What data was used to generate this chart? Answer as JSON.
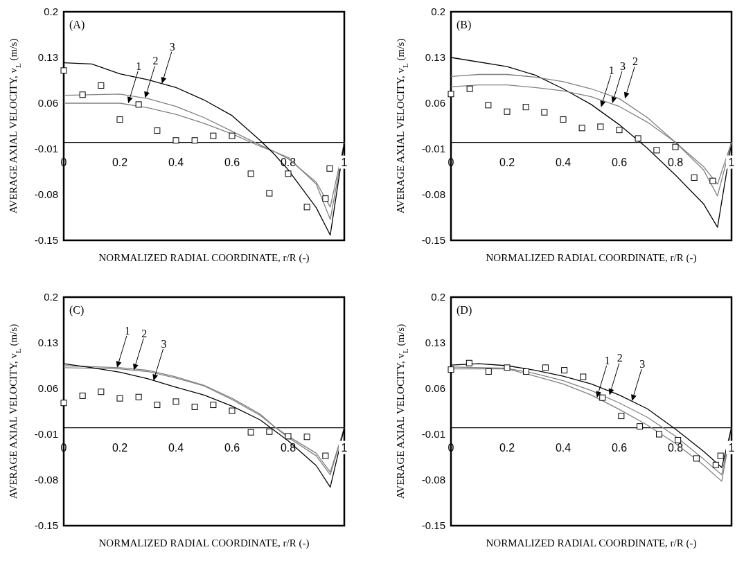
{
  "chart_data": [
    {
      "type": "line",
      "xlabel": "NORMALIZED RADIAL COORDINATE, r/R (-)",
      "ylabel": "AVERAGE AXIAL VELOCITY, v$_{L}$ (m/s)",
      "xlim": [
        0,
        1
      ],
      "xticks": [
        0,
        0.2,
        0.4,
        0.6,
        0.8,
        1
      ],
      "ylim": [
        -0.15,
        0.2
      ],
      "yticks": [
        -0.15,
        -0.08,
        -0.01,
        0.06,
        0.13,
        0.2
      ],
      "annotations": [
        "(A)",
        {
          "text": "1",
          "x": 0.23,
          "y": 0.06
        },
        {
          "text": "2",
          "x": 0.29,
          "y": 0.068
        },
        {
          "text": "3",
          "x": 0.35,
          "y": 0.09
        }
      ],
      "series": [
        {
          "type": "scatter",
          "marker": "square",
          "color": "#000000",
          "x": [
            0,
            0.067,
            0.133,
            0.2,
            0.267,
            0.333,
            0.4,
            0.467,
            0.533,
            0.6,
            0.667,
            0.733,
            0.8,
            0.867,
            0.933,
            0.948
          ],
          "values": [
            0.11,
            0.073,
            0.087,
            0.035,
            0.058,
            0.018,
            0.003,
            0.003,
            0.01,
            0.01,
            -0.048,
            -0.078,
            -0.048,
            -0.099,
            -0.086,
            -0.04
          ]
        },
        {
          "type": "line",
          "marker": "none",
          "line_style": "solid",
          "color": "#808080",
          "x": [
            0,
            0.2,
            0.3,
            0.4,
            0.5,
            0.6,
            0.7,
            0.75,
            0.8,
            0.9,
            0.95,
            1
          ],
          "values": [
            0.06,
            0.06,
            0.053,
            0.043,
            0.029,
            0.013,
            -0.006,
            -0.014,
            -0.023,
            -0.064,
            -0.118,
            0
          ]
        },
        {
          "type": "line",
          "marker": "none",
          "line_style": "solid",
          "color": "#808080",
          "x": [
            0,
            0.2,
            0.3,
            0.4,
            0.5,
            0.6,
            0.7,
            0.75,
            0.8,
            0.9,
            0.95,
            1
          ],
          "values": [
            0.072,
            0.074,
            0.067,
            0.055,
            0.038,
            0.017,
            -0.004,
            -0.014,
            -0.025,
            -0.061,
            -0.099,
            0
          ]
        },
        {
          "type": "line",
          "marker": "none",
          "line_style": "solid",
          "color": "#000000",
          "x": [
            0,
            0.1,
            0.2,
            0.3,
            0.4,
            0.5,
            0.6,
            0.7,
            0.75,
            0.8,
            0.9,
            0.95,
            1
          ],
          "values": [
            0.122,
            0.12,
            0.105,
            0.096,
            0.084,
            0.065,
            0.041,
            0.003,
            -0.018,
            -0.042,
            -0.1,
            -0.142,
            0
          ]
        }
      ]
    },
    {
      "type": "line",
      "xlabel": "NORMALIZED RADIAL COORDINATE, r/R (-)",
      "ylabel": "AVERAGE AXIAL VELOCITY, v$_{L}$ (m/s)",
      "xlim": [
        0,
        1
      ],
      "xticks": [
        0,
        0.2,
        0.4,
        0.6,
        0.8,
        1
      ],
      "ylim": [
        -0.15,
        0.2
      ],
      "yticks": [
        -0.15,
        -0.08,
        -0.01,
        0.06,
        0.13,
        0.2
      ],
      "annotations": [
        "(B)",
        {
          "text": "1",
          "x": 0.535,
          "y": 0.054
        },
        {
          "text": "3",
          "x": 0.575,
          "y": 0.06
        },
        {
          "text": "2",
          "x": 0.62,
          "y": 0.067
        }
      ],
      "series": [
        {
          "type": "scatter",
          "marker": "square",
          "color": "#000000",
          "x": [
            0,
            0.067,
            0.133,
            0.2,
            0.267,
            0.333,
            0.4,
            0.467,
            0.533,
            0.6,
            0.667,
            0.733,
            0.8,
            0.867,
            0.933
          ],
          "values": [
            0.074,
            0.082,
            0.057,
            0.047,
            0.054,
            0.046,
            0.035,
            0.022,
            0.024,
            0.019,
            0.006,
            -0.012,
            -0.007,
            -0.054,
            -0.059
          ]
        },
        {
          "type": "line",
          "marker": "none",
          "line_style": "solid",
          "color": "#000000",
          "x": [
            0,
            0.2,
            0.3,
            0.4,
            0.5,
            0.6,
            0.7,
            0.8,
            0.9,
            0.95,
            1
          ],
          "values": [
            0.13,
            0.116,
            0.103,
            0.082,
            0.058,
            0.027,
            -0.009,
            -0.05,
            -0.094,
            -0.13,
            0
          ]
        },
        {
          "type": "line",
          "marker": "none",
          "line_style": "solid",
          "color": "#808080",
          "x": [
            0,
            0.1,
            0.2,
            0.3,
            0.4,
            0.5,
            0.6,
            0.7,
            0.8,
            0.9,
            0.95,
            1
          ],
          "values": [
            0.101,
            0.104,
            0.104,
            0.1,
            0.093,
            0.082,
            0.067,
            0.038,
            0.0,
            -0.037,
            -0.064,
            0
          ]
        },
        {
          "type": "line",
          "marker": "none",
          "line_style": "solid",
          "color": "#808080",
          "x": [
            0,
            0.1,
            0.2,
            0.3,
            0.4,
            0.5,
            0.6,
            0.7,
            0.8,
            0.9,
            0.95,
            1
          ],
          "values": [
            0.085,
            0.088,
            0.088,
            0.084,
            0.079,
            0.07,
            0.055,
            0.031,
            0,
            -0.042,
            -0.082,
            0
          ]
        }
      ]
    },
    {
      "type": "line",
      "xlabel": "NORMALIZED RADIAL COORDINATE, r/R (-)",
      "ylabel": "AVERAGE AXIAL VELOCITY, v$_{L}$ (m/s)",
      "xlim": [
        0,
        1
      ],
      "xticks": [
        0,
        0.2,
        0.4,
        0.6,
        0.8,
        1
      ],
      "ylim": [
        -0.15,
        0.2
      ],
      "yticks": [
        -0.15,
        -0.08,
        -0.01,
        0.06,
        0.13,
        0.2
      ],
      "annotations": [
        "(C)",
        {
          "text": "1",
          "x": 0.19,
          "y": 0.092
        },
        {
          "text": "2",
          "x": 0.25,
          "y": 0.088
        },
        {
          "text": "3",
          "x": 0.32,
          "y": 0.072
        }
      ],
      "series": [
        {
          "type": "scatter",
          "marker": "square",
          "color": "#000000",
          "x": [
            0,
            0.067,
            0.133,
            0.2,
            0.267,
            0.333,
            0.4,
            0.467,
            0.533,
            0.6,
            0.667,
            0.733,
            0.8,
            0.867,
            0.933
          ],
          "values": [
            0.038,
            0.049,
            0.055,
            0.045,
            0.047,
            0.035,
            0.04,
            0.032,
            0.035,
            0.026,
            -0.007,
            -0.006,
            -0.013,
            -0.014,
            -0.043
          ]
        },
        {
          "type": "line",
          "marker": "none",
          "line_style": "solid",
          "color": "#808080",
          "x": [
            0,
            0.2,
            0.3,
            0.4,
            0.5,
            0.6,
            0.7,
            0.75,
            0.8,
            0.9,
            0.95,
            1
          ],
          "values": [
            0.095,
            0.092,
            0.088,
            0.078,
            0.065,
            0.045,
            0.021,
            0.002,
            -0.013,
            -0.039,
            -0.068,
            0
          ]
        },
        {
          "type": "line",
          "marker": "none",
          "line_style": "solid",
          "color": "#808080",
          "x": [
            0,
            0.2,
            0.3,
            0.4,
            0.5,
            0.6,
            0.7,
            0.8,
            0.9,
            0.95,
            1
          ],
          "values": [
            0.092,
            0.09,
            0.086,
            0.076,
            0.064,
            0.043,
            0.019,
            -0.015,
            -0.043,
            -0.072,
            0
          ]
        },
        {
          "type": "line",
          "marker": "none",
          "line_style": "solid",
          "color": "#000000",
          "x": [
            0,
            0.1,
            0.2,
            0.3,
            0.4,
            0.5,
            0.6,
            0.7,
            0.8,
            0.9,
            0.95,
            1
          ],
          "values": [
            0.098,
            0.092,
            0.085,
            0.075,
            0.062,
            0.05,
            0.033,
            0.012,
            -0.02,
            -0.058,
            -0.091,
            0
          ]
        }
      ]
    },
    {
      "type": "line",
      "xlabel": "NORMALIZED RADIAL COORDINATE, r/R (-)",
      "ylabel": "AVERAGE AXIAL VELOCITY, v$_{L}$ (m/s)",
      "xlim": [
        0,
        1
      ],
      "xticks": [
        0,
        0.2,
        0.4,
        0.6,
        0.8,
        1
      ],
      "ylim": [
        -0.15,
        0.2
      ],
      "yticks": [
        -0.15,
        -0.08,
        -0.01,
        0.06,
        0.13,
        0.2
      ],
      "annotations": [
        "(D)",
        {
          "text": "1",
          "x": 0.52,
          "y": 0.046
        },
        {
          "text": "2",
          "x": 0.565,
          "y": 0.05
        },
        {
          "text": "3",
          "x": 0.645,
          "y": 0.041
        }
      ],
      "series": [
        {
          "type": "scatter",
          "marker": "square",
          "color": "#000000",
          "x": [
            0,
            0.065,
            0.134,
            0.2,
            0.268,
            0.337,
            0.404,
            0.471,
            0.54,
            0.607,
            0.673,
            0.742,
            0.809,
            0.875,
            0.944,
            0.961
          ],
          "values": [
            0.089,
            0.099,
            0.086,
            0.092,
            0.086,
            0.092,
            0.088,
            0.078,
            0.046,
            0.018,
            0.002,
            -0.01,
            -0.019,
            -0.047,
            -0.057,
            -0.043
          ]
        },
        {
          "type": "line",
          "marker": "none",
          "line_style": "solid",
          "color": "#808080",
          "x": [
            0,
            0.2,
            0.3,
            0.4,
            0.5,
            0.6,
            0.7,
            0.8,
            0.9,
            0.965,
            1
          ],
          "values": [
            0.09,
            0.09,
            0.079,
            0.067,
            0.05,
            0.028,
            0.004,
            -0.024,
            -0.057,
            -0.082,
            0
          ]
        },
        {
          "type": "line",
          "marker": "none",
          "line_style": "solid",
          "color": "#808080",
          "x": [
            0,
            0.2,
            0.3,
            0.4,
            0.5,
            0.6,
            0.7,
            0.8,
            0.9,
            0.965,
            1
          ],
          "values": [
            0.093,
            0.091,
            0.083,
            0.072,
            0.057,
            0.038,
            0.016,
            -0.013,
            -0.048,
            -0.072,
            0
          ]
        },
        {
          "type": "line",
          "marker": "none",
          "line_style": "solid",
          "color": "#000000",
          "x": [
            0,
            0.1,
            0.2,
            0.3,
            0.4,
            0.5,
            0.6,
            0.7,
            0.8,
            0.9,
            0.965,
            1
          ],
          "values": [
            0.096,
            0.098,
            0.095,
            0.088,
            0.079,
            0.067,
            0.05,
            0.029,
            -0.002,
            -0.036,
            -0.061,
            0
          ]
        }
      ]
    }
  ]
}
